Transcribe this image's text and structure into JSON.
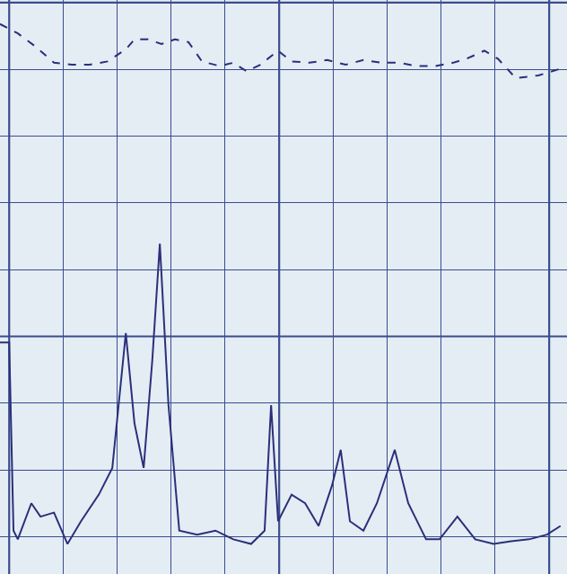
{
  "chart_data": {
    "type": "line",
    "tick_labels": false,
    "grid": true,
    "xlim": [
      -0.17,
      10.33
    ],
    "ylim": [
      -0.56,
      8.04
    ],
    "xticks": [
      0,
      1,
      2,
      3,
      4,
      5,
      6,
      7,
      8,
      9,
      10
    ],
    "yticks": [
      0,
      1,
      2,
      3,
      4,
      5,
      6,
      7,
      8
    ],
    "series": [
      {
        "color": "#2b2f7a",
        "line_style": "dashed",
        "x": [
          -0.17,
          0.16,
          0.49,
          0.83,
          1.16,
          1.49,
          1.82,
          2.16,
          2.32,
          2.57,
          2.82,
          3.07,
          3.32,
          3.57,
          3.9,
          4.15,
          4.4,
          4.65,
          4.98,
          5.23,
          5.56,
          5.89,
          6.23,
          6.56,
          6.89,
          7.22,
          7.55,
          7.89,
          8.22,
          8.47,
          8.8,
          9.05,
          9.38,
          9.8,
          10.21
        ],
        "values": [
          7.68,
          7.54,
          7.34,
          7.1,
          7.07,
          7.07,
          7.12,
          7.3,
          7.45,
          7.45,
          7.38,
          7.45,
          7.41,
          7.12,
          7.05,
          7.1,
          6.97,
          7.07,
          7.28,
          7.12,
          7.1,
          7.14,
          7.07,
          7.14,
          7.1,
          7.1,
          7.05,
          7.05,
          7.1,
          7.16,
          7.28,
          7.16,
          6.87,
          6.91,
          7.01
        ]
      },
      {
        "color": "#2b2f7a",
        "line_style": "solid",
        "x": [
          -0.17,
          0.0,
          0.08,
          0.16,
          0.41,
          0.58,
          0.83,
          1.08,
          1.33,
          1.66,
          1.91,
          2.16,
          2.32,
          2.49,
          2.65,
          2.79,
          2.95,
          3.15,
          3.48,
          3.82,
          4.15,
          4.48,
          4.73,
          4.85,
          4.98,
          5.23,
          5.48,
          5.73,
          5.98,
          6.14,
          6.31,
          6.56,
          6.81,
          7.14,
          7.39,
          7.72,
          7.97,
          8.3,
          8.63,
          8.97,
          9.3,
          9.63,
          9.96,
          10.21
        ],
        "values": [
          2.91,
          2.91,
          0.09,
          -0.04,
          0.5,
          0.3,
          0.36,
          -0.11,
          0.23,
          0.63,
          1.03,
          3.05,
          1.7,
          1.03,
          2.64,
          4.39,
          1.97,
          0.09,
          0.03,
          0.09,
          -0.04,
          -0.11,
          0.09,
          1.97,
          0.23,
          0.63,
          0.5,
          0.16,
          0.77,
          1.3,
          0.23,
          0.09,
          0.5,
          1.3,
          0.5,
          -0.04,
          -0.04,
          0.3,
          -0.04,
          -0.11,
          -0.07,
          -0.04,
          0.03,
          0.16
        ]
      }
    ]
  }
}
